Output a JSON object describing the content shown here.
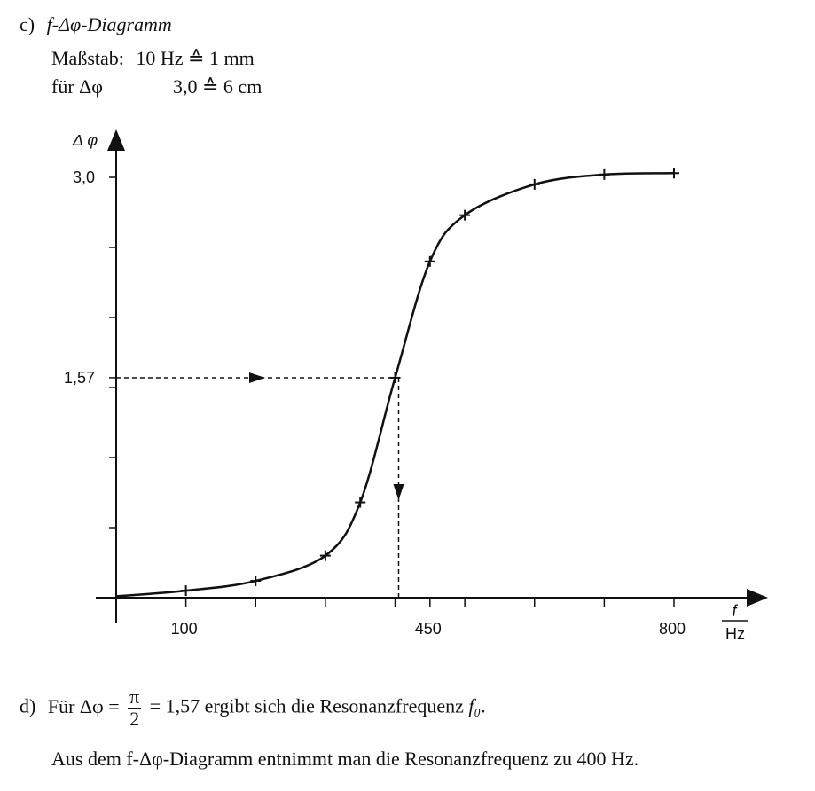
{
  "header": {
    "part_label": "c)",
    "title": "f-Δφ-Diagramm",
    "scale_label": "Maßstab:",
    "scale_f": "10 Hz ≙ 1 mm",
    "scale_phi_label": "für Δφ",
    "scale_phi": "3,0 ≙ 6 cm"
  },
  "chart_data": {
    "type": "line",
    "ylabel": "Δ φ",
    "xlabel_num": "f",
    "xlabel_den": "Hz",
    "x_tick_labels": [
      "100",
      "450",
      "800"
    ],
    "y_tick_labels": [
      "3,0",
      "1,57"
    ],
    "xlim": [
      0,
      800
    ],
    "ylim": [
      0,
      3.0
    ],
    "grid": false,
    "series": [
      {
        "values_x": [
          100,
          200,
          300,
          350,
          400,
          450,
          500,
          600,
          700,
          800
        ],
        "values_y": [
          0.05,
          0.12,
          0.3,
          0.68,
          1.57,
          2.4,
          2.73,
          2.95,
          3.02,
          3.03
        ]
      }
    ],
    "annotation": {
      "x": 400,
      "y": 1.57
    }
  },
  "footer": {
    "part_label": "d)",
    "line1_pre": "Für Δφ =",
    "frac_num": "π",
    "frac_den": "2",
    "line1_post": "= 1,57 ergibt sich die Resonanzfrequenz",
    "line1_var": "f₀",
    "line2": "Aus dem f-Δφ-Diagramm entnimmt man die Resonanzfrequenz zu 400 Hz."
  }
}
